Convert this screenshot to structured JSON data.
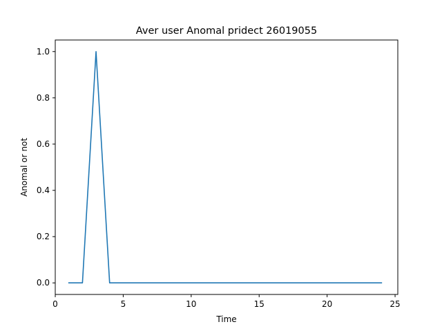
{
  "chart_data": {
    "type": "line",
    "title": "Aver user Anomal pridect 26019055",
    "xlabel": "Time",
    "ylabel": "Anomal or not",
    "xlim": [
      0,
      25.2
    ],
    "ylim": [
      -0.05,
      1.05
    ],
    "xticks": [
      0,
      5,
      10,
      15,
      20,
      25
    ],
    "yticks": [
      0.0,
      0.2,
      0.4,
      0.6,
      0.8,
      1.0
    ],
    "xtick_labels": [
      "0",
      "5",
      "10",
      "15",
      "20",
      "25"
    ],
    "ytick_labels": [
      "0.0",
      "0.2",
      "0.4",
      "0.6",
      "0.8",
      "1.0"
    ],
    "grid": false,
    "series": [
      {
        "color": "#1f77b4",
        "x": [
          1,
          2,
          3,
          4,
          5,
          6,
          7,
          8,
          9,
          10,
          11,
          12,
          13,
          14,
          15,
          16,
          17,
          18,
          19,
          20,
          21,
          22,
          23,
          24
        ],
        "y": [
          0,
          0,
          1,
          0,
          0,
          0,
          0,
          0,
          0,
          0,
          0,
          0,
          0,
          0,
          0,
          0,
          0,
          0,
          0,
          0,
          0,
          0,
          0,
          0
        ]
      }
    ]
  }
}
